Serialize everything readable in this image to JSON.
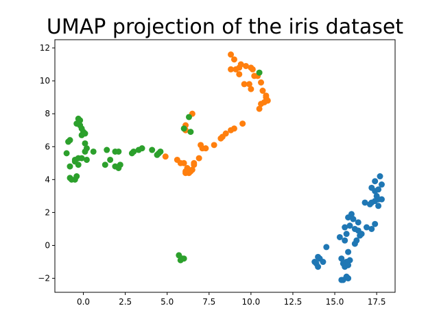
{
  "chart_data": {
    "type": "scatter",
    "title": "UMAP projection of the iris dataset",
    "xlabel": "",
    "ylabel": "",
    "xlim": [
      -1.7,
      18.6
    ],
    "ylim": [
      -2.85,
      12.5
    ],
    "xticks": [
      0.0,
      2.5,
      5.0,
      7.5,
      10.0,
      12.5,
      15.0,
      17.5
    ],
    "xtick_labels": [
      "0.0",
      "2.5",
      "5.0",
      "7.5",
      "10.0",
      "12.5",
      "15.0",
      "17.5"
    ],
    "yticks": [
      -2,
      0,
      2,
      4,
      6,
      8,
      10,
      12
    ],
    "ytick_labels": [
      "−2",
      "0",
      "2",
      "4",
      "6",
      "8",
      "10",
      "12"
    ],
    "grid": false,
    "legend": false,
    "series": [
      {
        "color": "#1f77b4",
        "points": [
          [
            17.7,
            4.2
          ],
          [
            17.4,
            3.9
          ],
          [
            17.8,
            3.7
          ],
          [
            17.2,
            3.5
          ],
          [
            17.4,
            3.3
          ],
          [
            17.6,
            3.4
          ],
          [
            17.5,
            3.0
          ],
          [
            16.8,
            2.6
          ],
          [
            17.1,
            2.5
          ],
          [
            17.4,
            2.7
          ],
          [
            17.6,
            2.8
          ],
          [
            17.8,
            2.8
          ],
          [
            17.6,
            2.4
          ],
          [
            16.0,
            1.9
          ],
          [
            15.8,
            1.7
          ],
          [
            16.1,
            1.6
          ],
          [
            15.9,
            1.2
          ],
          [
            15.6,
            1.1
          ],
          [
            16.2,
            1.0
          ],
          [
            16.4,
            0.9
          ],
          [
            16.5,
            0.6
          ],
          [
            16.6,
            0.7
          ],
          [
            16.3,
            0.3
          ],
          [
            16.2,
            0.1
          ],
          [
            17.2,
            1.0
          ],
          [
            17.4,
            1.3
          ],
          [
            15.3,
            0.5
          ],
          [
            15.7,
            0.7
          ],
          [
            15.6,
            0.3
          ],
          [
            15.8,
            -0.4
          ],
          [
            15.9,
            -0.9
          ],
          [
            15.7,
            -1.0
          ],
          [
            15.6,
            -1.3
          ],
          [
            15.4,
            -0.8
          ],
          [
            15.5,
            -1.1
          ],
          [
            15.8,
            -1.2
          ],
          [
            14.0,
            -0.7
          ],
          [
            14.1,
            -0.8
          ],
          [
            13.8,
            -1.0
          ],
          [
            13.9,
            -1.1
          ],
          [
            14.0,
            -1.3
          ],
          [
            14.3,
            -1.0
          ],
          [
            14.5,
            -0.1
          ],
          [
            15.4,
            -2.1
          ],
          [
            15.5,
            -2.1
          ],
          [
            15.7,
            -1.9
          ],
          [
            15.8,
            -2.0
          ],
          [
            17.2,
            2.6
          ],
          [
            16.4,
            1.4
          ],
          [
            16.9,
            1.1
          ]
        ]
      },
      {
        "color": "#ff7f0e",
        "points": [
          [
            8.8,
            11.6
          ],
          [
            9.0,
            11.3
          ],
          [
            9.3,
            10.8
          ],
          [
            9.4,
            11.0
          ],
          [
            8.8,
            10.7
          ],
          [
            9.1,
            10.7
          ],
          [
            9.7,
            10.9
          ],
          [
            10.0,
            10.8
          ],
          [
            10.1,
            10.7
          ],
          [
            9.3,
            10.4
          ],
          [
            10.2,
            10.3
          ],
          [
            10.4,
            10.3
          ],
          [
            10.6,
            9.9
          ],
          [
            9.6,
            9.8
          ],
          [
            9.9,
            9.8
          ],
          [
            10.0,
            9.5
          ],
          [
            10.7,
            9.4
          ],
          [
            10.9,
            9.1
          ],
          [
            11.0,
            8.8
          ],
          [
            10.6,
            8.6
          ],
          [
            10.8,
            8.7
          ],
          [
            10.9,
            9.0
          ],
          [
            10.5,
            8.3
          ],
          [
            6.5,
            8.0
          ],
          [
            6.1,
            7.0
          ],
          [
            6.1,
            7.3
          ],
          [
            9.5,
            7.4
          ],
          [
            9.0,
            7.1
          ],
          [
            8.8,
            7.0
          ],
          [
            8.5,
            6.8
          ],
          [
            8.3,
            6.6
          ],
          [
            8.2,
            6.5
          ],
          [
            7.8,
            6.1
          ],
          [
            7.0,
            6.1
          ],
          [
            7.1,
            5.9
          ],
          [
            7.3,
            5.9
          ],
          [
            6.9,
            5.3
          ],
          [
            5.6,
            5.2
          ],
          [
            5.8,
            5.0
          ],
          [
            6.0,
            5.0
          ],
          [
            6.6,
            4.9
          ],
          [
            6.2,
            4.7
          ],
          [
            6.5,
            4.6
          ],
          [
            6.1,
            4.4
          ],
          [
            6.3,
            4.4
          ],
          [
            6.4,
            4.5
          ],
          [
            6.6,
            5.0
          ],
          [
            4.9,
            5.4
          ],
          [
            6.1,
            4.5
          ],
          [
            6.2,
            4.6
          ]
        ]
      },
      {
        "color": "#2ca02c",
        "points": [
          [
            -0.3,
            7.7
          ],
          [
            -0.2,
            7.6
          ],
          [
            -0.4,
            7.4
          ],
          [
            -0.2,
            7.3
          ],
          [
            -0.1,
            7.1
          ],
          [
            0.0,
            6.9
          ],
          [
            -0.1,
            6.7
          ],
          [
            0.1,
            6.8
          ],
          [
            -0.8,
            6.4
          ],
          [
            -0.9,
            6.3
          ],
          [
            0.1,
            6.2
          ],
          [
            0.2,
            5.9
          ],
          [
            0.6,
            5.7
          ],
          [
            0.1,
            5.7
          ],
          [
            -1.0,
            5.6
          ],
          [
            -0.5,
            5.2
          ],
          [
            -0.3,
            5.3
          ],
          [
            -0.1,
            5.3
          ],
          [
            0.2,
            5.2
          ],
          [
            -0.5,
            5.1
          ],
          [
            -0.3,
            4.9
          ],
          [
            -0.8,
            4.8
          ],
          [
            -0.8,
            4.1
          ],
          [
            -0.7,
            4.0
          ],
          [
            -0.5,
            4.0
          ],
          [
            -0.4,
            4.2
          ],
          [
            1.4,
            5.8
          ],
          [
            1.6,
            5.2
          ],
          [
            1.9,
            5.7
          ],
          [
            2.1,
            5.7
          ],
          [
            1.3,
            4.9
          ],
          [
            1.9,
            4.8
          ],
          [
            2.1,
            4.7
          ],
          [
            2.2,
            4.9
          ],
          [
            2.9,
            5.6
          ],
          [
            3.0,
            5.7
          ],
          [
            3.3,
            5.8
          ],
          [
            3.5,
            5.9
          ],
          [
            4.1,
            5.8
          ],
          [
            4.5,
            5.6
          ],
          [
            4.6,
            5.7
          ],
          [
            4.4,
            5.5
          ],
          [
            6.3,
            7.8
          ],
          [
            6.4,
            6.9
          ],
          [
            6.0,
            7.1
          ],
          [
            10.5,
            10.5
          ],
          [
            5.7,
            -0.6
          ],
          [
            5.8,
            -0.9
          ],
          [
            5.9,
            -0.8
          ],
          [
            6.0,
            -0.8
          ]
        ]
      }
    ]
  }
}
